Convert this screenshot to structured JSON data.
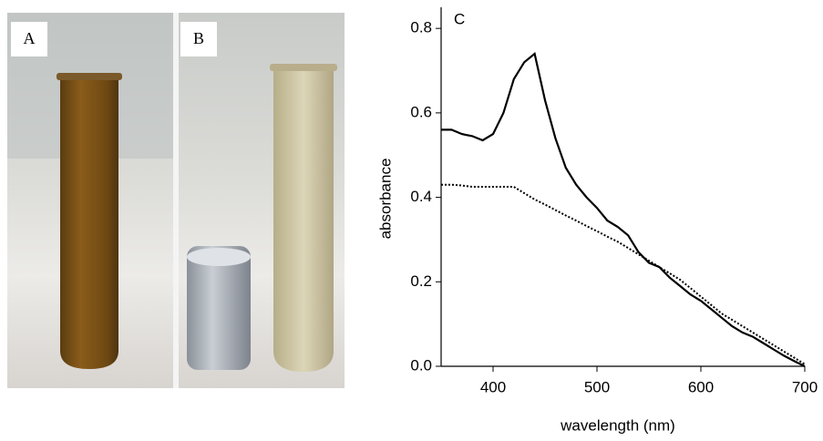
{
  "photos": {
    "panels": [
      "A",
      "B"
    ]
  },
  "chart_data": {
    "type": "line",
    "panel_label": "C",
    "x_label": "wavelength (nm)",
    "y_label": "absorbance",
    "x": [
      350,
      360,
      370,
      380,
      390,
      400,
      410,
      420,
      430,
      440,
      450,
      460,
      470,
      480,
      490,
      500,
      510,
      520,
      530,
      540,
      550,
      560,
      570,
      580,
      590,
      600,
      610,
      620,
      630,
      640,
      650,
      660,
      670,
      680,
      690,
      700
    ],
    "series": [
      {
        "color": "#000000",
        "style": "solid",
        "values": [
          0.56,
          0.56,
          0.55,
          0.545,
          0.535,
          0.55,
          0.6,
          0.68,
          0.72,
          0.74,
          0.63,
          0.54,
          0.47,
          0.43,
          0.4,
          0.375,
          0.345,
          0.33,
          0.31,
          0.27,
          0.245,
          0.235,
          0.21,
          0.19,
          0.17,
          0.155,
          0.135,
          0.115,
          0.095,
          0.08,
          0.07,
          0.055,
          0.04,
          0.025,
          0.012,
          0
        ]
      },
      {
        "color": "#000000",
        "style": "dotted",
        "values": [
          0.43,
          0.43,
          0.428,
          0.425,
          0.425,
          0.425,
          0.425,
          0.425,
          0.41,
          0.395,
          0.383,
          0.37,
          0.357,
          0.345,
          0.332,
          0.32,
          0.307,
          0.295,
          0.28,
          0.265,
          0.25,
          0.235,
          0.22,
          0.205,
          0.185,
          0.165,
          0.145,
          0.125,
          0.11,
          0.095,
          0.08,
          0.065,
          0.05,
          0.035,
          0.02,
          0.005
        ]
      }
    ],
    "xlim": [
      350,
      700
    ],
    "ylim": [
      0,
      0.85
    ],
    "xticks": [
      400,
      500,
      600,
      700
    ],
    "yticks": [
      {
        "value": 0,
        "label": "0.0"
      },
      0.2,
      0.4,
      0.6,
      0.8
    ]
  }
}
